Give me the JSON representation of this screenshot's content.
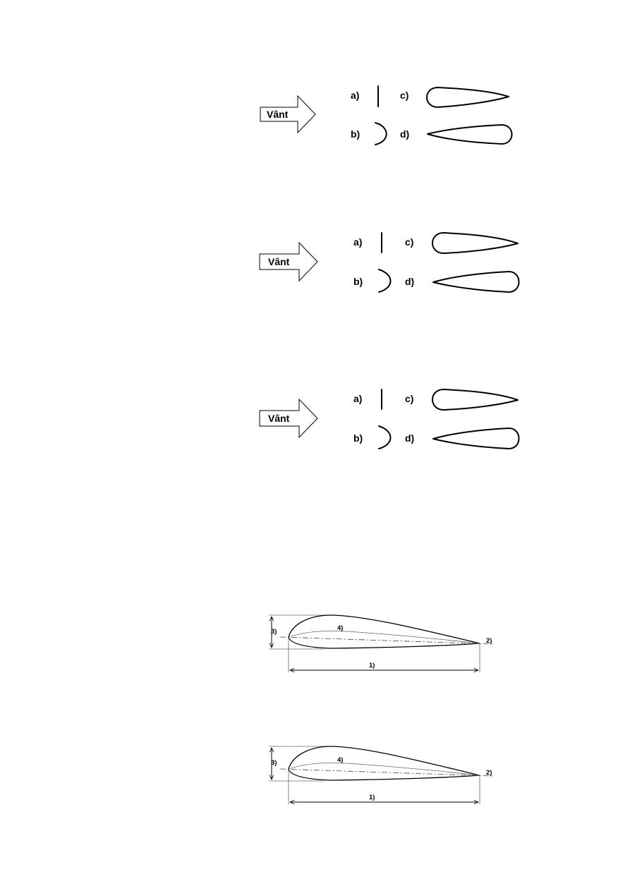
{
  "wind_label": "Vânt",
  "options": {
    "a": "a)",
    "b": "b)",
    "c": "c)",
    "d": "d)"
  },
  "profile_labels": {
    "chord": "1)",
    "trailing_edge": "2)",
    "thickness": "3)",
    "camber_line": "4)"
  }
}
